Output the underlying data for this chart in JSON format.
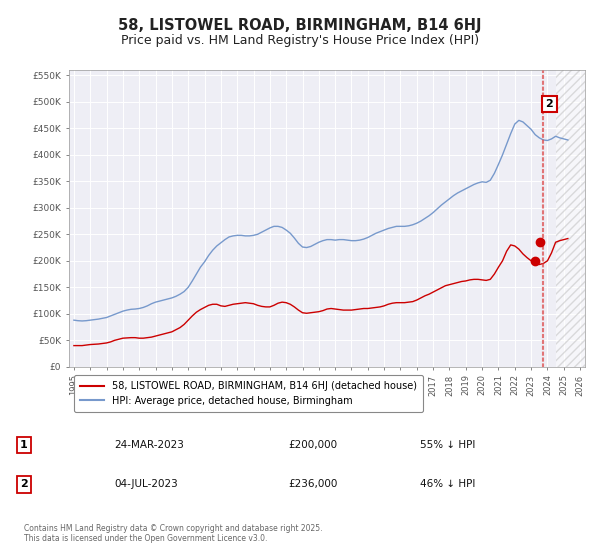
{
  "title": "58, LISTOWEL ROAD, BIRMINGHAM, B14 6HJ",
  "subtitle": "Price paid vs. HM Land Registry's House Price Index (HPI)",
  "title_fontsize": 10.5,
  "subtitle_fontsize": 9,
  "background_color": "#ffffff",
  "plot_bg_color": "#eeeef5",
  "grid_color": "#ffffff",
  "red_line_color": "#cc0000",
  "blue_line_color": "#7799cc",
  "vline_color": "#dd4444",
  "marker_color": "#cc0000",
  "hatch_color": "#cccccc",
  "ylim": [
    0,
    560000
  ],
  "yticks": [
    0,
    50000,
    100000,
    150000,
    200000,
    250000,
    300000,
    350000,
    400000,
    450000,
    500000,
    550000
  ],
  "ytick_labels": [
    "£0",
    "£50K",
    "£100K",
    "£150K",
    "£200K",
    "£250K",
    "£300K",
    "£350K",
    "£400K",
    "£450K",
    "£500K",
    "£550K"
  ],
  "xlim_start": 1994.7,
  "xlim_end": 2026.3,
  "xticks": [
    1995,
    1996,
    1997,
    1998,
    1999,
    2000,
    2001,
    2002,
    2003,
    2004,
    2005,
    2006,
    2007,
    2008,
    2009,
    2010,
    2011,
    2012,
    2013,
    2014,
    2015,
    2016,
    2017,
    2018,
    2019,
    2020,
    2021,
    2022,
    2023,
    2024,
    2025,
    2026
  ],
  "vline_x": 2023.7,
  "hatch_start": 2024.5,
  "sale1": {
    "date": "24-MAR-2023",
    "price": 200000,
    "x": 2023.23
  },
  "sale2": {
    "date": "04-JUL-2023",
    "price": 236000,
    "x": 2023.52
  },
  "legend_entries": [
    "58, LISTOWEL ROAD, BIRMINGHAM, B14 6HJ (detached house)",
    "HPI: Average price, detached house, Birmingham"
  ],
  "table_rows": [
    [
      "1",
      "24-MAR-2023",
      "£200,000",
      "55% ↓ HPI"
    ],
    [
      "2",
      "04-JUL-2023",
      "£236,000",
      "46% ↓ HPI"
    ]
  ],
  "footer": "Contains HM Land Registry data © Crown copyright and database right 2025.\nThis data is licensed under the Open Government Licence v3.0.",
  "hpi_data_years": [
    1995.0,
    1995.25,
    1995.5,
    1995.75,
    1996.0,
    1996.25,
    1996.5,
    1996.75,
    1997.0,
    1997.25,
    1997.5,
    1997.75,
    1998.0,
    1998.25,
    1998.5,
    1998.75,
    1999.0,
    1999.25,
    1999.5,
    1999.75,
    2000.0,
    2000.25,
    2000.5,
    2000.75,
    2001.0,
    2001.25,
    2001.5,
    2001.75,
    2002.0,
    2002.25,
    2002.5,
    2002.75,
    2003.0,
    2003.25,
    2003.5,
    2003.75,
    2004.0,
    2004.25,
    2004.5,
    2004.75,
    2005.0,
    2005.25,
    2005.5,
    2005.75,
    2006.0,
    2006.25,
    2006.5,
    2006.75,
    2007.0,
    2007.25,
    2007.5,
    2007.75,
    2008.0,
    2008.25,
    2008.5,
    2008.75,
    2009.0,
    2009.25,
    2009.5,
    2009.75,
    2010.0,
    2010.25,
    2010.5,
    2010.75,
    2011.0,
    2011.25,
    2011.5,
    2011.75,
    2012.0,
    2012.25,
    2012.5,
    2012.75,
    2013.0,
    2013.25,
    2013.5,
    2013.75,
    2014.0,
    2014.25,
    2014.5,
    2014.75,
    2015.0,
    2015.25,
    2015.5,
    2015.75,
    2016.0,
    2016.25,
    2016.5,
    2016.75,
    2017.0,
    2017.25,
    2017.5,
    2017.75,
    2018.0,
    2018.25,
    2018.5,
    2018.75,
    2019.0,
    2019.25,
    2019.5,
    2019.75,
    2020.0,
    2020.25,
    2020.5,
    2020.75,
    2021.0,
    2021.25,
    2021.5,
    2021.75,
    2022.0,
    2022.25,
    2022.5,
    2022.75,
    2023.0,
    2023.25,
    2023.5,
    2023.75,
    2024.0,
    2024.25,
    2024.5,
    2024.75,
    2025.0,
    2025.25
  ],
  "hpi_data_values": [
    88000,
    87000,
    86500,
    87000,
    88000,
    89000,
    90000,
    91500,
    93000,
    96000,
    99000,
    102000,
    105000,
    107000,
    108500,
    109000,
    110000,
    112000,
    115000,
    119000,
    122000,
    124000,
    126000,
    128000,
    130000,
    133000,
    137000,
    142000,
    150000,
    162000,
    175000,
    188000,
    198000,
    210000,
    220000,
    228000,
    234000,
    240000,
    245000,
    247000,
    248000,
    248000,
    247000,
    247000,
    248000,
    250000,
    254000,
    258000,
    262000,
    265000,
    265000,
    263000,
    258000,
    252000,
    243000,
    233000,
    226000,
    225000,
    227000,
    231000,
    235000,
    238000,
    240000,
    240000,
    239000,
    240000,
    240000,
    239000,
    238000,
    238000,
    239000,
    241000,
    244000,
    248000,
    252000,
    255000,
    258000,
    261000,
    263000,
    265000,
    265000,
    265000,
    266000,
    268000,
    271000,
    275000,
    280000,
    285000,
    291000,
    298000,
    305000,
    311000,
    317000,
    323000,
    328000,
    332000,
    336000,
    340000,
    344000,
    347000,
    349000,
    348000,
    352000,
    365000,
    382000,
    400000,
    420000,
    440000,
    458000,
    465000,
    462000,
    455000,
    448000,
    438000,
    432000,
    428000,
    427000,
    430000,
    435000,
    432000,
    430000,
    428000
  ],
  "red_data_years": [
    1995.0,
    1995.25,
    1995.5,
    1995.75,
    1996.0,
    1996.25,
    1996.5,
    1996.75,
    1997.0,
    1997.25,
    1997.5,
    1997.75,
    1998.0,
    1998.25,
    1998.5,
    1998.75,
    1999.0,
    1999.25,
    1999.5,
    1999.75,
    2000.0,
    2000.25,
    2000.5,
    2000.75,
    2001.0,
    2001.25,
    2001.5,
    2001.75,
    2002.0,
    2002.25,
    2002.5,
    2002.75,
    2003.0,
    2003.25,
    2003.5,
    2003.75,
    2004.0,
    2004.25,
    2004.5,
    2004.75,
    2005.0,
    2005.25,
    2005.5,
    2005.75,
    2006.0,
    2006.25,
    2006.5,
    2006.75,
    2007.0,
    2007.25,
    2007.5,
    2007.75,
    2008.0,
    2008.25,
    2008.5,
    2008.75,
    2009.0,
    2009.25,
    2009.5,
    2009.75,
    2010.0,
    2010.25,
    2010.5,
    2010.75,
    2011.0,
    2011.25,
    2011.5,
    2011.75,
    2012.0,
    2012.25,
    2012.5,
    2012.75,
    2013.0,
    2013.25,
    2013.5,
    2013.75,
    2014.0,
    2014.25,
    2014.5,
    2014.75,
    2015.0,
    2015.25,
    2015.5,
    2015.75,
    2016.0,
    2016.25,
    2016.5,
    2016.75,
    2017.0,
    2017.25,
    2017.5,
    2017.75,
    2018.0,
    2018.25,
    2018.5,
    2018.75,
    2019.0,
    2019.25,
    2019.5,
    2019.75,
    2020.0,
    2020.25,
    2020.5,
    2020.75,
    2021.0,
    2021.25,
    2021.5,
    2021.75,
    2022.0,
    2022.25,
    2022.5,
    2022.75,
    2023.0,
    2023.25,
    2023.5,
    2023.75,
    2024.0,
    2024.25,
    2024.5,
    2024.75,
    2025.0,
    2025.25
  ],
  "red_data_values": [
    40000,
    40000,
    40000,
    41000,
    42000,
    42500,
    43000,
    44000,
    45000,
    47000,
    50000,
    52000,
    54000,
    54500,
    55000,
    55000,
    54000,
    54000,
    55000,
    56000,
    58000,
    60000,
    62000,
    64000,
    66000,
    70000,
    74000,
    80000,
    88000,
    96000,
    103000,
    108000,
    112000,
    116000,
    118000,
    118000,
    115000,
    114000,
    116000,
    118000,
    119000,
    120000,
    121000,
    120000,
    119000,
    116000,
    114000,
    113000,
    113000,
    116000,
    120000,
    122000,
    121000,
    118000,
    113000,
    107000,
    102000,
    101000,
    102000,
    103000,
    104000,
    106000,
    109000,
    110000,
    109000,
    108000,
    107000,
    107000,
    107000,
    108000,
    109000,
    110000,
    110000,
    111000,
    112000,
    113000,
    115000,
    118000,
    120000,
    121000,
    121000,
    121000,
    122000,
    123000,
    126000,
    130000,
    134000,
    137000,
    141000,
    145000,
    149000,
    153000,
    155000,
    157000,
    159000,
    161000,
    162000,
    164000,
    165000,
    165000,
    164000,
    163000,
    165000,
    175000,
    188000,
    200000,
    218000,
    230000,
    228000,
    222000,
    213000,
    206000,
    200000,
    196000,
    193000,
    195000,
    200000,
    215000,
    235000,
    238000,
    240000,
    242000
  ]
}
